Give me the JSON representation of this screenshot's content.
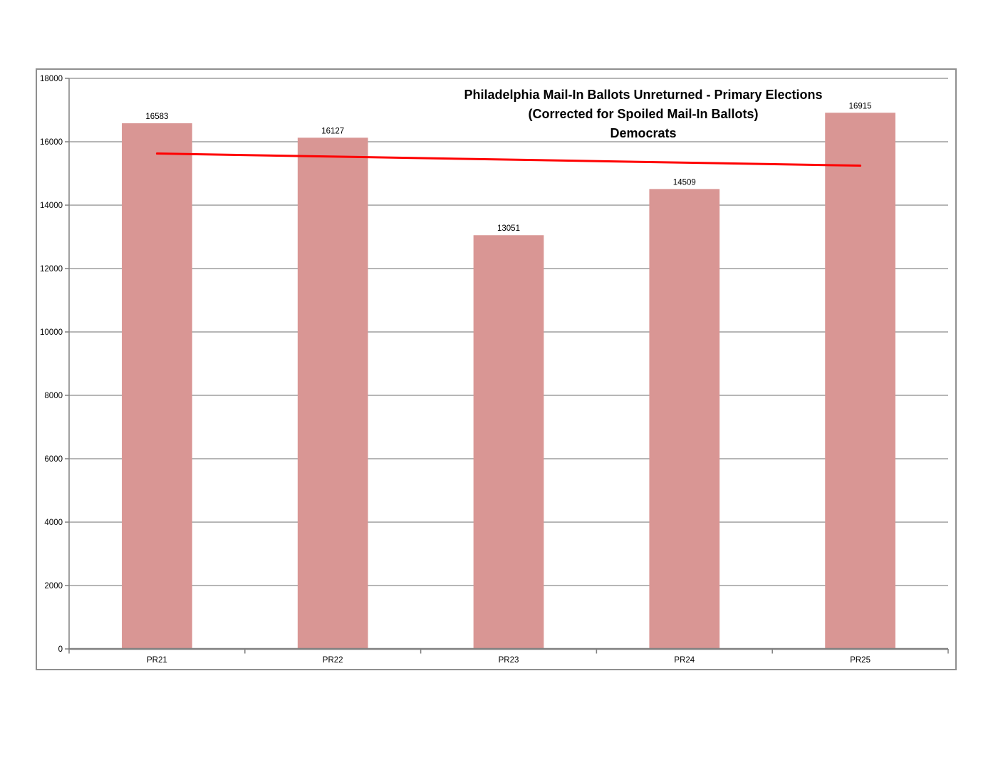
{
  "page": {
    "background_color": "#ffffff"
  },
  "chart_data": {
    "type": "bar",
    "title": "Philadelphia Mail-In Ballots Unreturned - Primary Elections (Corrected for Spoiled Mail-In Ballots) Democrats",
    "title_lines": [
      "Philadelphia Mail-In Ballots Unreturned - Primary Elections",
      "(Corrected for Spoiled Mail-In Ballots)",
      "Democrats"
    ],
    "categories": [
      "PR21",
      "PR22",
      "PR23",
      "PR24",
      "PR25"
    ],
    "values": [
      16583,
      16127,
      13051,
      14509,
      16915
    ],
    "xlabel": "",
    "ylabel": "",
    "ylim": [
      0,
      18000
    ],
    "yticks": [
      0,
      2000,
      4000,
      6000,
      8000,
      10000,
      12000,
      14000,
      16000,
      18000
    ],
    "grid": true,
    "legend": "none",
    "data_labels_shown": true,
    "bar_color": "#d99694",
    "trendline": {
      "type": "linear",
      "color": "#ff0000",
      "start_value": 15628,
      "end_value": 15246
    },
    "colors": {
      "gridline": "#8a8a8a",
      "axis": "#808080",
      "frame_border": "#8f8f8f",
      "text": "#000000",
      "background": "#ffffff"
    }
  }
}
